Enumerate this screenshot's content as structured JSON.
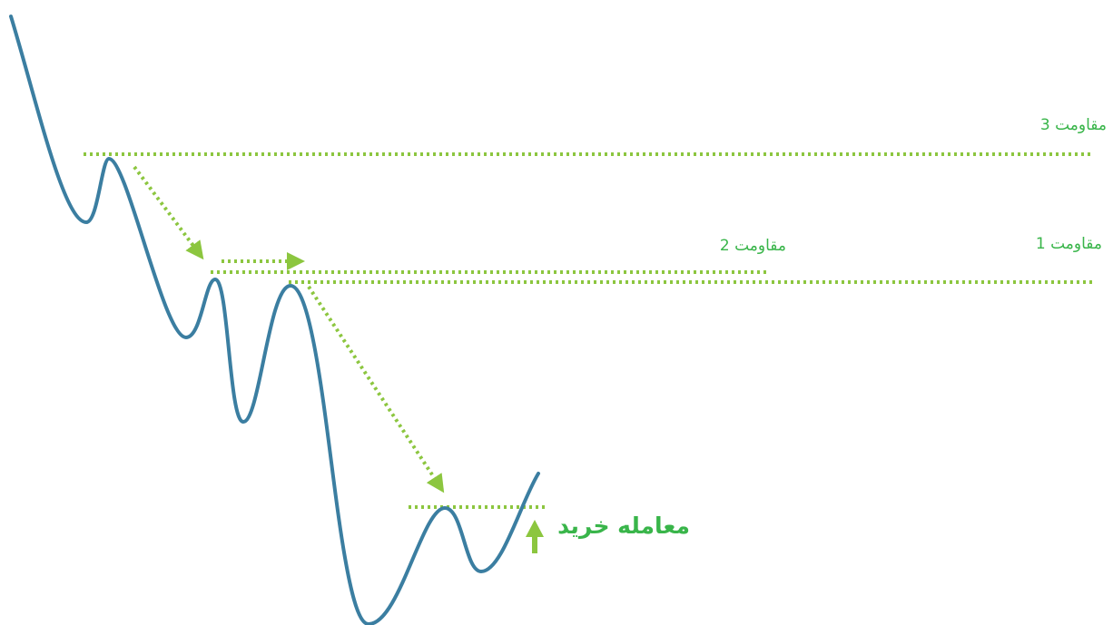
{
  "colors": {
    "price_line": "#3b7ea1",
    "levels": "#8cc63f",
    "label_text": "#39b54a",
    "background": "#ffffff"
  },
  "labels": {
    "resistance_3": "مقاومت 3",
    "resistance_2": "مقاومت 2",
    "resistance_1": "مقاومت 1",
    "buy_trade": "معامله خرید"
  },
  "icons": {
    "buy_arrow": "arrow-up-icon",
    "move_arrows": "arrow-down-right-icon"
  }
}
